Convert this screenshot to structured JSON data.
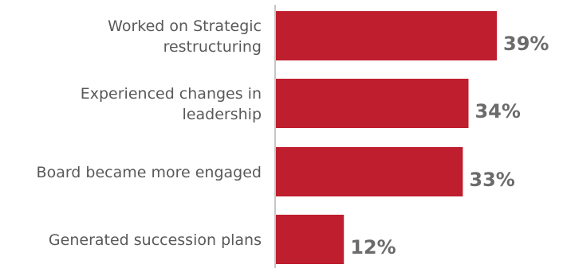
{
  "chart_data": {
    "type": "bar",
    "orientation": "horizontal",
    "categories": [
      [
        "Worked on Strategic",
        "restructuring"
      ],
      [
        "Experienced changes in",
        "leadership"
      ],
      [
        "Board became more engaged"
      ],
      [
        "Generated succession plans"
      ]
    ],
    "values": [
      39,
      34,
      33,
      12
    ],
    "value_labels": [
      "39%",
      "34%",
      "33%",
      "12%"
    ],
    "title": "",
    "xlabel": "",
    "ylabel": "",
    "xlim": [
      0,
      43
    ],
    "grid": false,
    "legend": "none"
  },
  "colors": {
    "bar": "#be1e2d",
    "axis": "#8c8c8c",
    "category_text": "#595959",
    "value_text": "#6b6b6b"
  }
}
